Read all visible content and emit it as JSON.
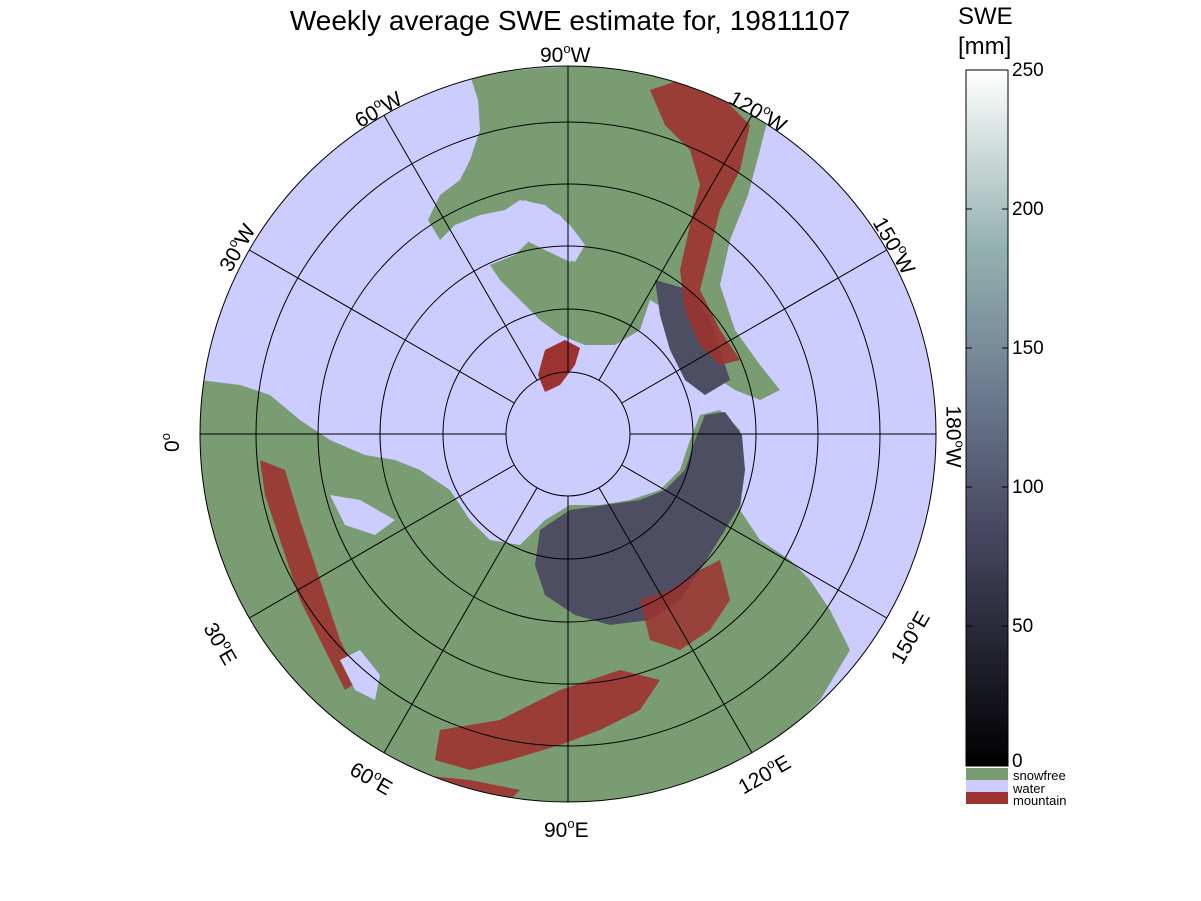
{
  "title": "Weekly average SWE estimate for, 19811107",
  "colorbar": {
    "title_line1": "SWE",
    "title_line2": "[mm]",
    "min": 0,
    "max": 250,
    "ticks": [
      "250",
      "200",
      "150",
      "100",
      "50",
      "0"
    ],
    "colors": {
      "low": "#000000",
      "mid": "#5a5a78",
      "high_mid": "#8aaaa9",
      "high": "#ffffff"
    }
  },
  "legend": [
    {
      "label": "snowfree",
      "color": "#799c72"
    },
    {
      "label": "water",
      "color": "#ccccff"
    },
    {
      "label": "mountain",
      "color": "#9c3330"
    }
  ],
  "map": {
    "projection": "north polar stereographic",
    "water_color": "#ccccff",
    "land_color": "#799c72",
    "mountain_color": "#9c3330",
    "snow_color": "#4e4e62",
    "longitude_labels": [
      {
        "deg": "90",
        "hemi": "W"
      },
      {
        "deg": "120",
        "hemi": "W"
      },
      {
        "deg": "150",
        "hemi": "W"
      },
      {
        "deg": "180",
        "hemi": "W"
      },
      {
        "deg": "150",
        "hemi": "E"
      },
      {
        "deg": "120",
        "hemi": "E"
      },
      {
        "deg": "90",
        "hemi": "E"
      },
      {
        "deg": "60",
        "hemi": "E"
      },
      {
        "deg": "30",
        "hemi": "E"
      },
      {
        "deg": "0",
        "hemi": ""
      },
      {
        "deg": "30",
        "hemi": "W"
      },
      {
        "deg": "60",
        "hemi": "W"
      }
    ]
  }
}
